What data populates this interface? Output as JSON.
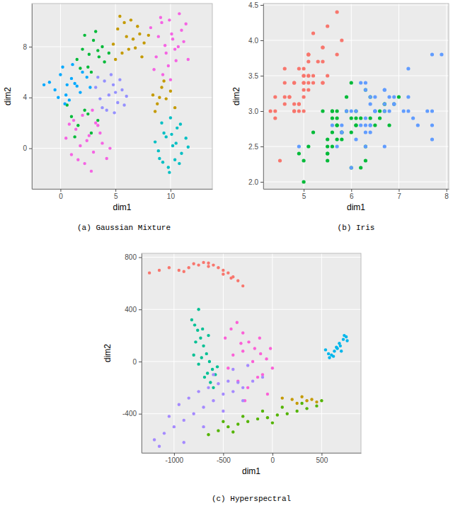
{
  "chart_data": [
    {
      "type": "scatter",
      "title": "(a) Gaussian Mixture",
      "x_label": "dim1",
      "y_label": "dim2",
      "xlim": [
        -2.6,
        13.8
      ],
      "ylim": [
        -3.2,
        11.4
      ],
      "xticks": [
        0,
        5,
        10
      ],
      "yticks": [
        0,
        4,
        8
      ],
      "grid": true,
      "series": [
        {
          "color": "#F564E3",
          "x": [
            8.2,
            8.7,
            9.1,
            9.5,
            9.8,
            10.1,
            10.4,
            10.8,
            11.2,
            11.6,
            8.9,
            9.3,
            9.9,
            10.5,
            11.0,
            9.6,
            10.2,
            8.5,
            11.4,
            10.0,
            9.2,
            10.7,
            0.5,
            1.0,
            1.4,
            1.8,
            2.2,
            2.6,
            3.0,
            3.4,
            3.8,
            4.2,
            1.2,
            2.0,
            2.8,
            3.6,
            1.6,
            2.4,
            3.2,
            0.8,
            4.5,
            2.9
          ],
          "values": [
            9.5,
            7.2,
            10.3,
            8.1,
            6.5,
            9.0,
            7.8,
            10.6,
            8.4,
            7.0,
            8.8,
            5.8,
            10.1,
            6.9,
            9.3,
            7.5,
            8.6,
            6.2,
            9.8,
            5.4,
            9.9,
            8.0,
            0.8,
            -0.5,
            1.5,
            0.2,
            -1.2,
            1.0,
            -0.3,
            1.8,
            0.4,
            -0.8,
            2.2,
            2.6,
            -1.8,
            1.2,
            -0.9,
            0.6,
            2.0,
            1.9,
            0.0,
            3.0
          ]
        },
        {
          "color": "#00BFC4",
          "x": [
            8.6,
            9.0,
            9.4,
            9.8,
            10.2,
            10.6,
            11.0,
            11.4,
            9.2,
            9.9,
            10.4,
            10.9,
            8.9,
            9.6,
            10.1,
            10.8,
            11.6,
            9.3,
            10.5,
            10.0
          ],
          "values": [
            0.5,
            -0.8,
            1.2,
            -1.5,
            0.2,
            1.6,
            -0.4,
            0.8,
            2.0,
            -1.9,
            -0.9,
            1.9,
            -0.2,
            0.9,
            1.1,
            -1.2,
            0.1,
            -1.1,
            0.4,
            2.4
          ]
        },
        {
          "color": "#C49A00",
          "x": [
            4.8,
            5.2,
            5.6,
            6.0,
            6.4,
            6.8,
            7.2,
            7.6,
            5.0,
            5.8,
            6.6,
            7.4,
            5.4,
            6.2,
            7.0,
            8.0,
            8.4,
            8.8,
            9.2,
            9.6,
            10.0,
            8.6,
            9.4,
            9.0,
            10.4
          ],
          "values": [
            8.2,
            9.4,
            7.5,
            8.8,
            10.1,
            7.9,
            9.0,
            8.3,
            7.0,
            9.9,
            8.6,
            7.2,
            10.4,
            7.8,
            9.6,
            8.9,
            4.2,
            3.5,
            4.8,
            3.9,
            4.5,
            2.9,
            5.3,
            4.0,
            3.2
          ]
        },
        {
          "color": "#00BA38",
          "x": [
            1.5,
            2.0,
            2.5,
            3.0,
            3.5,
            4.0,
            2.2,
            2.8,
            3.4,
            1.8,
            2.6,
            3.2,
            3.8,
            4.4,
            1.0,
            1.6,
            2.2,
            2.8,
            3.4,
            0.6,
            1.3,
            2.5
          ],
          "values": [
            7.0,
            7.8,
            6.4,
            8.5,
            7.2,
            6.8,
            8.9,
            6.0,
            7.7,
            6.3,
            7.4,
            9.2,
            8.0,
            7.5,
            2.5,
            1.8,
            3.0,
            1.2,
            2.2,
            3.4,
            0.9,
            2.7
          ]
        },
        {
          "color": "#00A9FF",
          "x": [
            -1.0,
            -0.5,
            0.0,
            0.5,
            1.0,
            1.5,
            2.0,
            0.2,
            0.8,
            1.3,
            -0.2,
            0.6,
            1.8,
            2.4,
            -1.5,
            0.4,
            1.1,
            2.7
          ],
          "values": [
            5.2,
            4.6,
            5.8,
            4.2,
            5.5,
            4.9,
            6.0,
            6.4,
            3.8,
            5.1,
            4.0,
            5.0,
            4.4,
            5.6,
            5.0,
            3.5,
            6.6,
            4.8
          ]
        },
        {
          "color": "#9590FF",
          "x": [
            3.2,
            3.6,
            4.0,
            4.4,
            4.8,
            5.2,
            5.6,
            6.0,
            3.8,
            4.6,
            5.4,
            4.2,
            5.0,
            5.8,
            3.4,
            4.9
          ],
          "values": [
            4.8,
            3.9,
            5.3,
            4.2,
            5.0,
            3.6,
            4.6,
            4.1,
            3.2,
            5.8,
            5.4,
            3.0,
            4.4,
            3.4,
            5.6,
            2.8
          ]
        }
      ]
    },
    {
      "type": "scatter",
      "title": "(b) Iris",
      "x_label": "dim1",
      "y_label": "dim2",
      "xlim": [
        4.15,
        8.05
      ],
      "ylim": [
        1.9,
        4.52
      ],
      "xticks": [
        5,
        6,
        7,
        8
      ],
      "yticks": [
        {
          "value": 2,
          "label": "2.0"
        },
        2.5,
        {
          "value": 3,
          "label": "3.0"
        },
        3.5,
        {
          "value": 4,
          "label": "4.0"
        },
        4.5
      ],
      "grid": true,
      "series": [
        {
          "color": "#F8766D",
          "x": [
            5.1,
            4.9,
            4.7,
            4.6,
            5.0,
            5.4,
            4.6,
            5.0,
            4.4,
            4.9,
            5.4,
            4.8,
            4.8,
            4.3,
            5.8,
            5.7,
            5.4,
            5.1,
            5.7,
            5.1,
            5.4,
            5.1,
            4.6,
            5.1,
            4.8,
            5.0,
            5.0,
            5.2,
            5.2,
            4.7,
            4.8,
            5.4,
            5.2,
            5.5,
            4.9,
            5.0,
            5.5,
            4.9,
            4.4,
            5.1,
            5.0,
            4.5,
            4.4,
            5.0,
            5.1,
            4.8,
            5.1,
            4.6,
            5.3,
            5.0
          ],
          "values": [
            3.5,
            3.0,
            3.2,
            3.1,
            3.6,
            3.9,
            3.4,
            3.4,
            2.9,
            3.1,
            3.7,
            3.4,
            3.0,
            3.0,
            4.0,
            4.4,
            3.9,
            3.5,
            3.8,
            3.8,
            3.4,
            3.7,
            3.6,
            3.3,
            3.4,
            3.0,
            3.4,
            3.5,
            3.4,
            3.2,
            3.1,
            3.4,
            4.1,
            4.2,
            3.1,
            3.2,
            3.5,
            3.6,
            3.0,
            3.4,
            3.5,
            2.3,
            3.2,
            3.5,
            3.8,
            3.0,
            3.8,
            3.2,
            3.7,
            3.3
          ]
        },
        {
          "color": "#00BA38",
          "x": [
            7.0,
            6.4,
            6.9,
            5.5,
            6.5,
            5.7,
            6.3,
            4.9,
            6.6,
            5.2,
            5.0,
            5.9,
            6.0,
            6.1,
            5.6,
            6.7,
            5.6,
            5.8,
            6.2,
            5.6,
            5.9,
            6.1,
            6.3,
            6.1,
            6.4,
            6.6,
            6.8,
            6.7,
            6.0,
            5.7,
            5.5,
            5.5,
            5.8,
            6.0,
            5.4,
            6.0,
            6.7,
            6.3,
            5.6,
            5.5,
            5.5,
            6.1,
            5.8,
            5.0,
            5.6,
            5.7,
            5.7,
            6.2,
            5.1,
            5.7
          ],
          "values": [
            3.2,
            3.2,
            3.1,
            2.3,
            2.8,
            2.8,
            3.3,
            2.4,
            2.9,
            2.7,
            2.0,
            3.0,
            2.2,
            2.9,
            2.9,
            3.1,
            3.0,
            2.7,
            2.2,
            2.5,
            3.2,
            2.8,
            2.5,
            2.8,
            2.9,
            3.0,
            2.8,
            3.0,
            2.9,
            2.6,
            2.4,
            2.4,
            2.7,
            2.7,
            3.0,
            3.4,
            3.1,
            2.3,
            3.0,
            2.5,
            2.6,
            3.0,
            2.6,
            2.3,
            2.7,
            3.0,
            2.9,
            2.9,
            2.5,
            2.8
          ]
        },
        {
          "color": "#619CFF",
          "x": [
            6.3,
            5.8,
            7.1,
            6.3,
            6.5,
            7.6,
            4.9,
            7.3,
            6.7,
            7.2,
            6.5,
            6.4,
            6.8,
            5.7,
            5.8,
            6.4,
            6.5,
            7.7,
            7.7,
            6.0,
            6.9,
            5.6,
            7.7,
            6.3,
            6.7,
            7.2,
            6.2,
            6.1,
            6.4,
            7.2,
            7.4,
            7.9,
            6.4,
            6.3,
            6.1,
            7.7,
            6.3,
            6.4,
            6.0,
            6.9,
            6.7,
            6.9,
            5.8,
            6.8,
            6.7,
            6.7,
            6.3,
            6.5,
            6.2,
            5.9
          ],
          "values": [
            3.3,
            2.7,
            3.0,
            2.9,
            3.0,
            3.0,
            2.5,
            2.9,
            2.5,
            3.6,
            3.2,
            2.7,
            3.0,
            2.5,
            2.8,
            3.2,
            3.0,
            3.8,
            2.6,
            2.2,
            3.2,
            2.8,
            2.8,
            2.7,
            3.3,
            3.2,
            2.8,
            3.0,
            2.8,
            3.0,
            2.8,
            3.8,
            2.8,
            2.8,
            2.6,
            3.0,
            3.4,
            3.1,
            3.0,
            3.1,
            3.1,
            3.1,
            2.7,
            3.2,
            3.3,
            3.0,
            2.5,
            3.0,
            3.4,
            3.0
          ]
        }
      ]
    },
    {
      "type": "scatter",
      "title": "(c) Hyperspectral",
      "x_label": "dim1",
      "y_label": "dim2",
      "xlim": [
        -1330,
        900
      ],
      "ylim": [
        -700,
        830
      ],
      "xticks": [
        -1000,
        -500,
        0,
        500
      ],
      "yticks": [
        -400,
        0,
        400,
        800
      ],
      "grid": true,
      "series": [
        {
          "color": "#F8766D",
          "x": [
            -1250,
            -1150,
            -1050,
            -950,
            -850,
            -750,
            -700,
            -650,
            -600,
            -550,
            -500,
            -450,
            -400,
            -350,
            -300,
            -900,
            -800,
            -650,
            -500,
            -420
          ],
          "values": [
            680,
            700,
            720,
            700,
            720,
            740,
            760,
            755,
            740,
            720,
            700,
            680,
            650,
            620,
            580,
            690,
            750,
            730,
            670,
            640
          ]
        },
        {
          "color": "#00C094",
          "x": [
            -820,
            -790,
            -760,
            -730,
            -700,
            -670,
            -640,
            -610,
            -780,
            -720,
            -660,
            -750,
            -690,
            -630,
            -580,
            -800,
            -710,
            -650,
            -600,
            -560,
            -750
          ],
          "values": [
            320,
            280,
            240,
            180,
            120,
            60,
            0,
            -60,
            150,
            30,
            -90,
            -20,
            -120,
            -160,
            -100,
            50,
            250,
            200,
            -200,
            -40,
            400
          ]
        },
        {
          "color": "#FB61D7",
          "x": [
            -480,
            -420,
            -360,
            -300,
            -240,
            -180,
            -120,
            -60,
            0,
            -400,
            -300,
            -200,
            -100,
            -350,
            -250,
            -150,
            -50,
            -450,
            -280,
            -130,
            -20,
            -320
          ],
          "values": [
            180,
            250,
            300,
            220,
            150,
            100,
            60,
            20,
            -50,
            50,
            80,
            0,
            -100,
            -150,
            -200,
            -120,
            -250,
            -50,
            -300,
            180,
            100,
            140
          ]
        },
        {
          "color": "#00B6EB",
          "x": [
            540,
            570,
            600,
            630,
            660,
            690,
            720,
            750,
            580,
            620,
            680,
            730,
            700,
            760,
            650
          ],
          "values": [
            90,
            60,
            50,
            80,
            100,
            120,
            170,
            190,
            30,
            40,
            140,
            200,
            80,
            160,
            110
          ]
        },
        {
          "color": "#A58AFF",
          "x": [
            -1200,
            -1100,
            -1000,
            -900,
            -800,
            -700,
            -600,
            -500,
            -400,
            -300,
            -200,
            -100,
            -1050,
            -950,
            -850,
            -750,
            -650,
            -550,
            -450,
            -350,
            -900,
            -700,
            -500,
            -300,
            -1150,
            -600,
            -400,
            -250
          ],
          "values": [
            -600,
            -550,
            -500,
            -450,
            -400,
            -350,
            -300,
            -250,
            -230,
            -200,
            -150,
            -120,
            -420,
            -330,
            -280,
            -230,
            -200,
            -170,
            -150,
            -160,
            -620,
            -500,
            -380,
            -300,
            -650,
            -100,
            -60,
            -30
          ]
        },
        {
          "color": "#53B400",
          "x": [
            -650,
            -550,
            -450,
            -350,
            -250,
            -150,
            -50,
            50,
            150,
            250,
            350,
            450,
            -500,
            -300,
            -100,
            100,
            300,
            500,
            -400,
            0
          ],
          "values": [
            -560,
            -530,
            -500,
            -480,
            -460,
            -440,
            -430,
            -410,
            -400,
            -380,
            -360,
            -340,
            -460,
            -420,
            -380,
            -350,
            -320,
            -300,
            -540,
            -470
          ]
        },
        {
          "color": "#C49A00",
          "x": [
            100,
            200,
            300,
            350,
            400,
            450,
            250
          ],
          "values": [
            -280,
            -290,
            -270,
            -300,
            -290,
            -310,
            -320
          ]
        }
      ]
    }
  ]
}
